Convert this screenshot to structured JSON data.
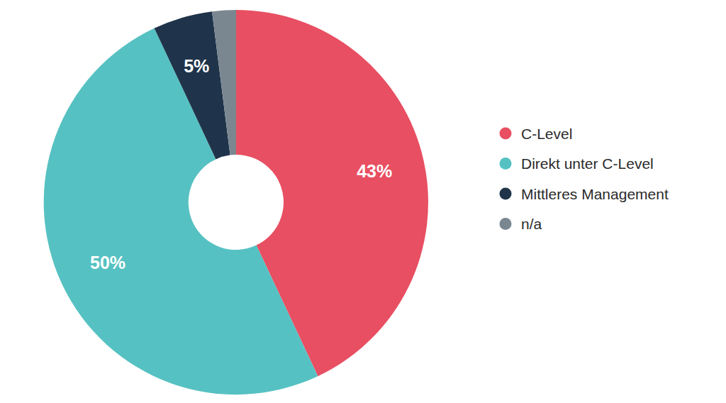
{
  "chart_data": {
    "type": "pie",
    "categories": [
      "C-Level",
      "Direkt unter C-Level",
      "Mittleres Management",
      "n/a"
    ],
    "values": [
      43,
      50,
      5,
      2
    ],
    "value_labels": [
      "43%",
      "50%",
      "5%",
      null
    ],
    "colors": [
      "#e84f62",
      "#56c1c2",
      "#1f344a",
      "#7a8791"
    ],
    "data_labels": true,
    "legend": "right"
  }
}
